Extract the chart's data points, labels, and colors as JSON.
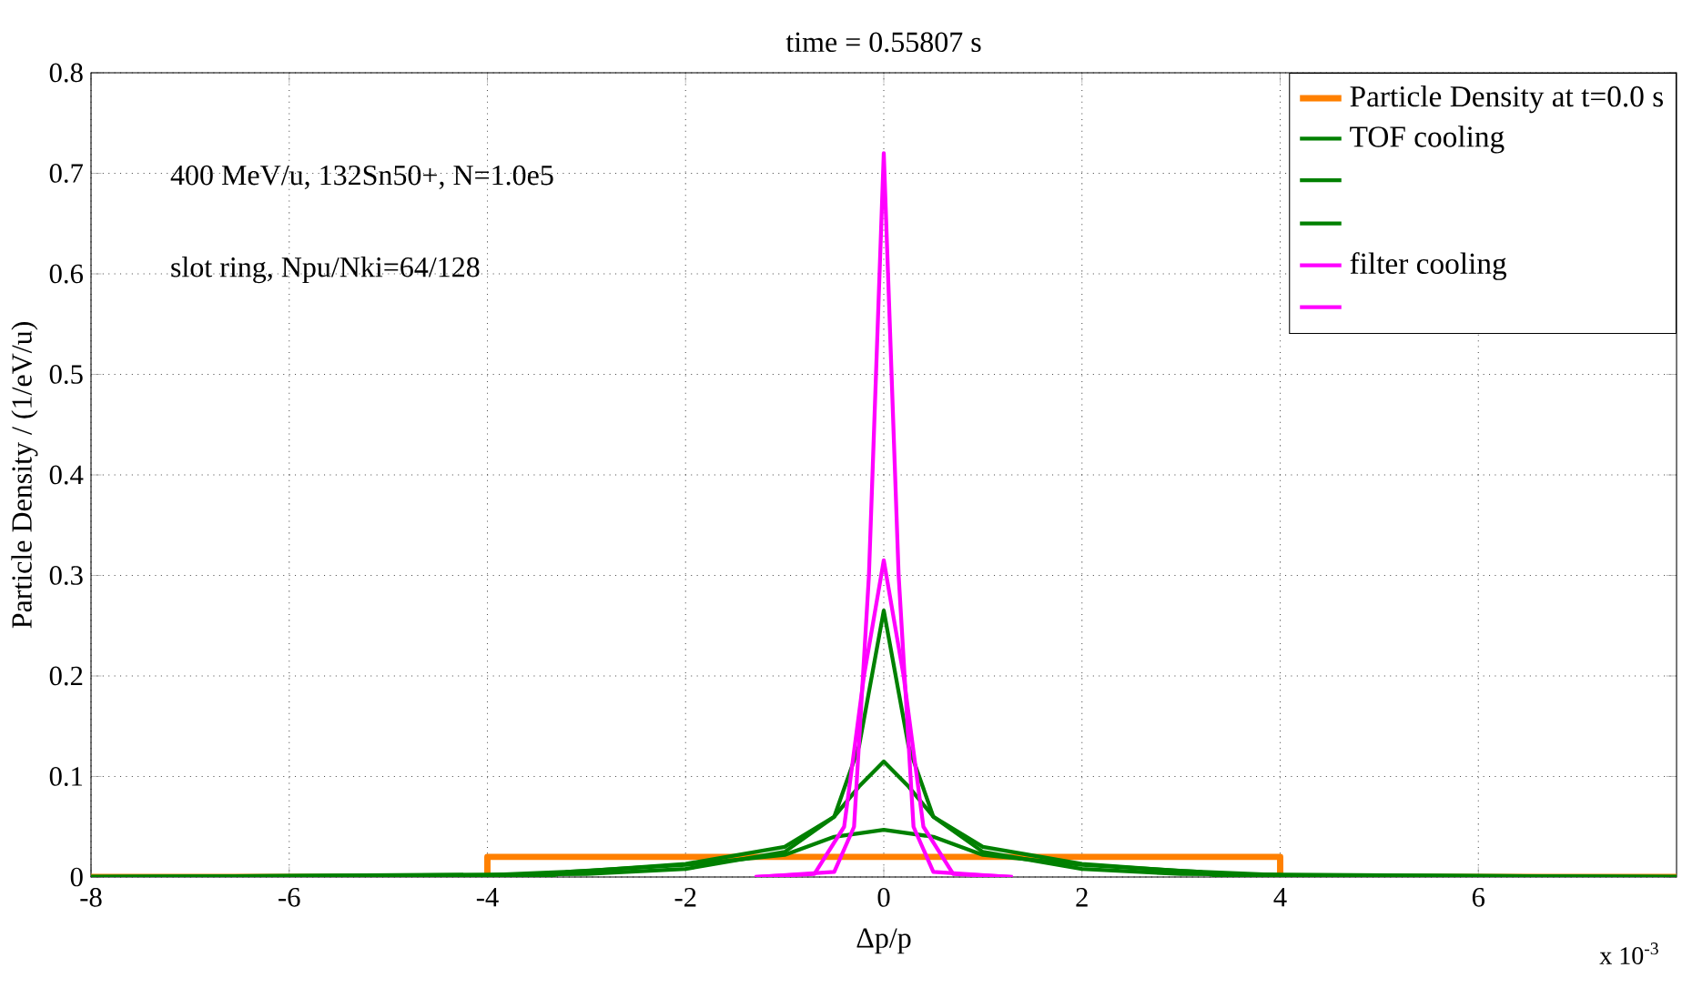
{
  "chart_data": {
    "type": "line",
    "title": "time = 0.55807 s",
    "xlabel": "Δp/p",
    "ylabel": "Particle Density / (1/eV/u)",
    "xlim": [
      -8,
      8
    ],
    "ylim": [
      0,
      0.8
    ],
    "xticks": [
      -8,
      -6,
      -4,
      -2,
      0,
      2,
      4,
      6
    ],
    "yticks": [
      0,
      0.1,
      0.2,
      0.3,
      0.4,
      0.5,
      0.6,
      0.7,
      0.8
    ],
    "grid": true,
    "legend": "top right",
    "marker": "none",
    "line_style": "solid",
    "annotations": [
      "400 MeV/u, 132Sn50+, N=1.0e5",
      "slot ring, Npu/Nki=64/128",
      "x 10$^{-3}$"
    ],
    "series": [
      {
        "name": "Particle Density at t=0.0 s",
        "color": "#ff8000",
        "x": [
          -8,
          -4,
          -4,
          4,
          4,
          8
        ],
        "values": [
          0,
          0,
          0.02,
          0.02,
          0,
          0
        ]
      },
      {
        "name": "TOF cooling",
        "color": "#008000",
        "x": [
          -8,
          -3.4,
          -3.2,
          -2,
          -1,
          -0.5,
          0,
          0.5,
          1,
          2,
          3.2,
          3.4,
          8
        ],
        "values": [
          0,
          0,
          0.005,
          0.012,
          0.022,
          0.04,
          0.047,
          0.04,
          0.022,
          0.012,
          0.005,
          0,
          0
        ]
      },
      {
        "color": "#008000",
        "x": [
          -8,
          -4,
          -3,
          -2,
          -1,
          -0.5,
          -0.25,
          0,
          0.25,
          0.5,
          1,
          2,
          3,
          4,
          8
        ],
        "values": [
          0,
          0.002,
          0.006,
          0.013,
          0.03,
          0.06,
          0.09,
          0.115,
          0.09,
          0.06,
          0.03,
          0.013,
          0.006,
          0.002,
          0
        ]
      },
      {
        "color": "#008000",
        "x": [
          -8,
          -3,
          -2,
          -1,
          -0.5,
          -0.25,
          0,
          0.25,
          0.5,
          1,
          2,
          3,
          8
        ],
        "values": [
          0,
          0.003,
          0.008,
          0.025,
          0.06,
          0.13,
          0.265,
          0.13,
          0.06,
          0.025,
          0.008,
          0.003,
          0
        ]
      },
      {
        "name": "filter cooling",
        "color": "#ff00ff",
        "x": [
          -1.3,
          -0.5,
          -0.3,
          -0.15,
          0,
          0.15,
          0.3,
          0.5,
          1.3
        ],
        "values": [
          0,
          0.005,
          0.05,
          0.3,
          0.72,
          0.3,
          0.05,
          0.005,
          0
        ]
      },
      {
        "color": "#ff00ff",
        "x": [
          -1.3,
          -0.7,
          -0.4,
          -0.2,
          0,
          0.2,
          0.4,
          0.7,
          1.3
        ],
        "values": [
          0,
          0.003,
          0.05,
          0.2,
          0.315,
          0.2,
          0.05,
          0.003,
          0
        ]
      }
    ]
  }
}
